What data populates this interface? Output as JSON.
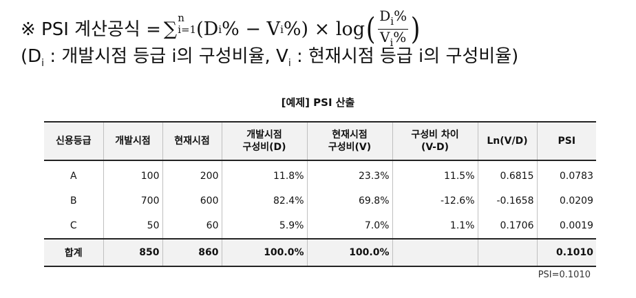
{
  "formula": {
    "prefix": "※ PSI 계산공식 =",
    "sigma": "∑",
    "sigma_upper": "n",
    "sigma_lower": "i=1",
    "term_open": "(D",
    "term_i1": "i",
    "term_mid": "% − V",
    "term_i2": "i",
    "term_close": "%) × log",
    "frac_num_base": "D",
    "frac_num_sub": "i",
    "frac_num_pct": "%",
    "frac_den_base": "V",
    "frac_den_sub": "i",
    "frac_den_pct": "%"
  },
  "legend": {
    "open": "(D",
    "d_sub": "i",
    "d_desc": " : 개발시점 등급 i의 구성비율, V",
    "v_sub": "i",
    "v_desc": " : 현재시점 등급 i의 구성비율)"
  },
  "table": {
    "title": "[예제] PSI 산출",
    "headers": [
      {
        "line1": "신용등급",
        "line2": ""
      },
      {
        "line1": "개발시점",
        "line2": ""
      },
      {
        "line1": "현재시점",
        "line2": ""
      },
      {
        "line1": "개발시점",
        "line2": "구성비(D)"
      },
      {
        "line1": "현재시점",
        "line2": "구성비(V)"
      },
      {
        "line1": "구성비 차이",
        "line2": "(V-D)"
      },
      {
        "line1": "Ln(V/D)",
        "line2": ""
      },
      {
        "line1": "PSI",
        "line2": ""
      }
    ],
    "rows": [
      [
        "A",
        "100",
        "200",
        "11.8%",
        "23.3%",
        "11.5%",
        "0.6815",
        "0.0783"
      ],
      [
        "B",
        "700",
        "600",
        "82.4%",
        "69.8%",
        "-12.6%",
        "-0.1658",
        "0.0209"
      ],
      [
        "C",
        "50",
        "60",
        "5.9%",
        "7.0%",
        "1.1%",
        "0.1706",
        "0.0019"
      ]
    ],
    "total": [
      "합계",
      "850",
      "860",
      "100.0%",
      "100.0%",
      "",
      "",
      "0.1010"
    ]
  },
  "footnote": "PSI=0.1010"
}
